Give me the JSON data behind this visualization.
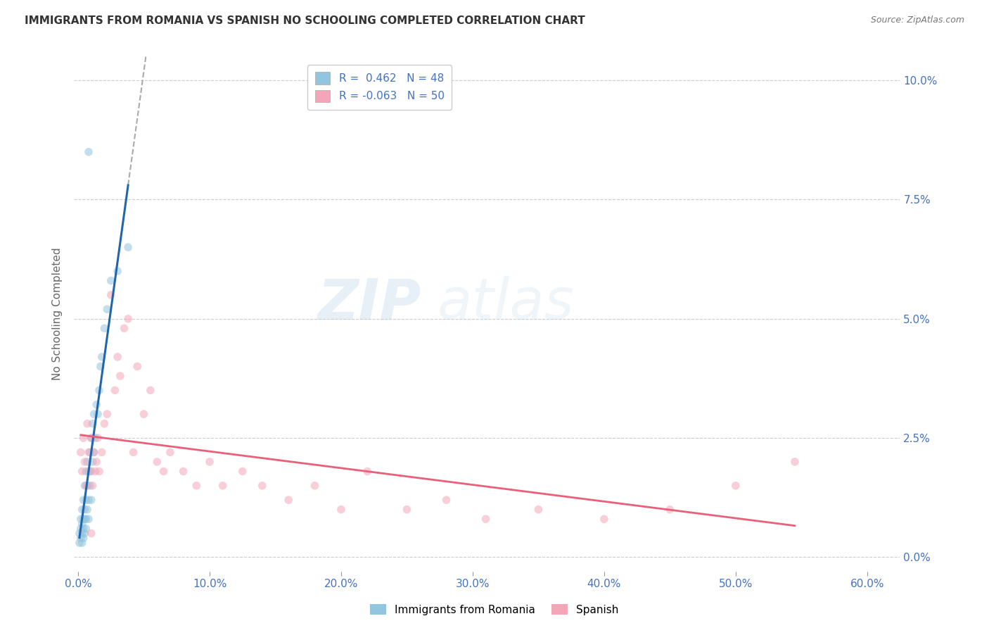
{
  "title": "IMMIGRANTS FROM ROMANIA VS SPANISH NO SCHOOLING COMPLETED CORRELATION CHART",
  "source": "Source: ZipAtlas.com",
  "xlabel_vals": [
    0.0,
    0.1,
    0.2,
    0.3,
    0.4,
    0.5,
    0.6
  ],
  "ylabel_vals": [
    0.0,
    0.025,
    0.05,
    0.075,
    0.1
  ],
  "xlim": [
    -0.003,
    0.625
  ],
  "ylim": [
    -0.003,
    0.105
  ],
  "legend_label1": "Immigrants from Romania",
  "legend_label2": "Spanish",
  "R1": 0.462,
  "N1": 48,
  "R2": -0.063,
  "N2": 50,
  "blue_color": "#92c5de",
  "pink_color": "#f4a6b8",
  "blue_line_color": "#2166ac",
  "pink_line_color": "#e8607a",
  "dot_size": 70,
  "dot_alpha": 0.55,
  "watermark_zip": "ZIP",
  "watermark_atlas": "atlas",
  "blue_scatter_x": [
    0.001,
    0.001,
    0.002,
    0.002,
    0.002,
    0.003,
    0.003,
    0.003,
    0.003,
    0.004,
    0.004,
    0.004,
    0.004,
    0.005,
    0.005,
    0.005,
    0.005,
    0.006,
    0.006,
    0.006,
    0.006,
    0.007,
    0.007,
    0.007,
    0.008,
    0.008,
    0.008,
    0.009,
    0.009,
    0.01,
    0.01,
    0.01,
    0.011,
    0.011,
    0.012,
    0.012,
    0.013,
    0.014,
    0.015,
    0.016,
    0.017,
    0.018,
    0.02,
    0.022,
    0.025,
    0.03,
    0.038,
    0.008
  ],
  "blue_scatter_y": [
    0.005,
    0.003,
    0.008,
    0.004,
    0.006,
    0.005,
    0.01,
    0.007,
    0.003,
    0.008,
    0.012,
    0.006,
    0.004,
    0.01,
    0.008,
    0.015,
    0.005,
    0.012,
    0.018,
    0.008,
    0.006,
    0.015,
    0.01,
    0.02,
    0.012,
    0.018,
    0.008,
    0.015,
    0.022,
    0.018,
    0.025,
    0.012,
    0.02,
    0.028,
    0.022,
    0.03,
    0.025,
    0.032,
    0.03,
    0.035,
    0.04,
    0.042,
    0.048,
    0.052,
    0.058,
    0.06,
    0.065,
    0.085
  ],
  "pink_scatter_x": [
    0.002,
    0.003,
    0.004,
    0.005,
    0.006,
    0.007,
    0.008,
    0.009,
    0.01,
    0.011,
    0.012,
    0.013,
    0.014,
    0.015,
    0.016,
    0.018,
    0.02,
    0.022,
    0.025,
    0.028,
    0.03,
    0.032,
    0.035,
    0.038,
    0.042,
    0.045,
    0.05,
    0.055,
    0.06,
    0.065,
    0.07,
    0.08,
    0.09,
    0.1,
    0.11,
    0.125,
    0.14,
    0.16,
    0.18,
    0.2,
    0.22,
    0.25,
    0.28,
    0.31,
    0.35,
    0.4,
    0.45,
    0.5,
    0.545,
    0.01
  ],
  "pink_scatter_y": [
    0.022,
    0.018,
    0.025,
    0.02,
    0.015,
    0.028,
    0.022,
    0.018,
    0.025,
    0.015,
    0.022,
    0.018,
    0.02,
    0.025,
    0.018,
    0.022,
    0.028,
    0.03,
    0.055,
    0.035,
    0.042,
    0.038,
    0.048,
    0.05,
    0.022,
    0.04,
    0.03,
    0.035,
    0.02,
    0.018,
    0.022,
    0.018,
    0.015,
    0.02,
    0.015,
    0.018,
    0.015,
    0.012,
    0.015,
    0.01,
    0.018,
    0.01,
    0.012,
    0.008,
    0.01,
    0.008,
    0.01,
    0.015,
    0.02,
    0.005
  ],
  "background_color": "#ffffff",
  "grid_color": "#cccccc",
  "title_color": "#333333",
  "axis_color": "#4472c4"
}
